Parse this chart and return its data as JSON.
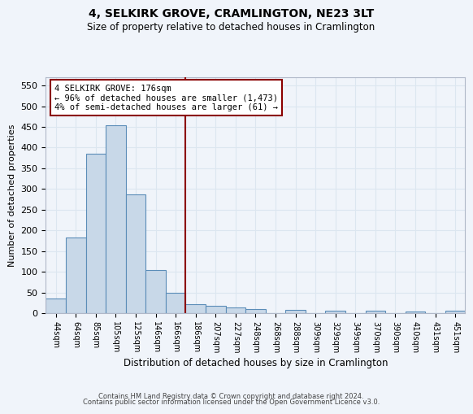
{
  "title": "4, SELKIRK GROVE, CRAMLINGTON, NE23 3LT",
  "subtitle": "Size of property relative to detached houses in Cramlington",
  "xlabel": "Distribution of detached houses by size in Cramlington",
  "ylabel": "Number of detached properties",
  "bar_labels": [
    "44sqm",
    "64sqm",
    "85sqm",
    "105sqm",
    "125sqm",
    "146sqm",
    "166sqm",
    "186sqm",
    "207sqm",
    "227sqm",
    "248sqm",
    "268sqm",
    "288sqm",
    "309sqm",
    "329sqm",
    "349sqm",
    "370sqm",
    "390sqm",
    "410sqm",
    "431sqm",
    "451sqm"
  ],
  "bar_values": [
    35,
    183,
    385,
    455,
    287,
    105,
    50,
    22,
    18,
    13,
    10,
    0,
    8,
    0,
    6,
    0,
    5,
    0,
    4,
    0,
    5
  ],
  "bar_color": "#c8d8e8",
  "bar_edge_color": "#5b8db8",
  "grid_color": "#dce6f0",
  "background_color": "#f0f4fa",
  "vline_x": 6.5,
  "vline_color": "#8b0000",
  "annotation_line1": "4 SELKIRK GROVE: 176sqm",
  "annotation_line2": "← 96% of detached houses are smaller (1,473)",
  "annotation_line3": "4% of semi-detached houses are larger (61) →",
  "annotation_box_color": "#8b0000",
  "annotation_bg": "white",
  "ylim": [
    0,
    570
  ],
  "yticks": [
    0,
    50,
    100,
    150,
    200,
    250,
    300,
    350,
    400,
    450,
    500,
    550
  ],
  "footer_line1": "Contains HM Land Registry data © Crown copyright and database right 2024.",
  "footer_line2": "Contains public sector information licensed under the Open Government Licence v3.0."
}
